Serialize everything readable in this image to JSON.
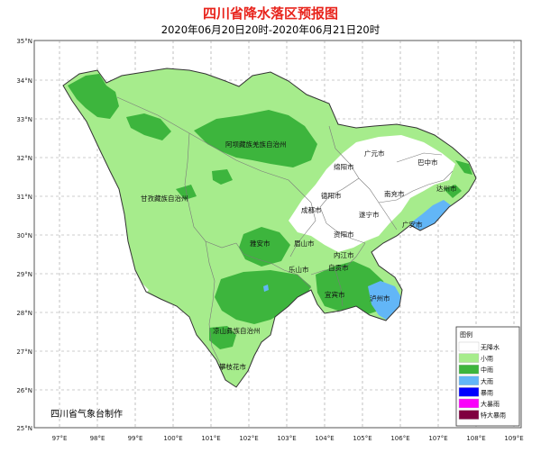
{
  "header": {
    "title": "四川省降水落区预报图",
    "subtitle": "2020年06月20日20时-2020年06月21日20时"
  },
  "axes": {
    "lat_labels": [
      "35°N",
      "34°N",
      "33°N",
      "32°N",
      "31°N",
      "30°N",
      "29°N",
      "28°N",
      "27°N",
      "26°N",
      "25°N"
    ],
    "lon_labels": [
      "97°E",
      "98°E",
      "99°E",
      "100°E",
      "101°E",
      "102°E",
      "103°E",
      "104°E",
      "105°E",
      "106°E",
      "107°E",
      "108°E",
      "109°E"
    ]
  },
  "regions": {
    "aba": "阿坝藏族羌族自治州",
    "ganzi": "甘孜藏族自治州",
    "liangshan": "凉山彝族自治州",
    "panzhihua": "攀枝花市",
    "guangyuan": "广元市",
    "bazhong": "巴中市",
    "mianyang": "绵阳市",
    "dazhou": "达州市",
    "deyang": "德阳市",
    "nanchong": "南充市",
    "chengdu": "成都市",
    "suining": "遂宁市",
    "guangan": "广安市",
    "ziyang": "资阳市",
    "yaan": "雅安市",
    "meishan": "眉山市",
    "neijiang": "内江市",
    "leshan": "乐山市",
    "zigong": "自贡市",
    "yibin": "宜宾市",
    "luzhou": "泸州市"
  },
  "credit": "四川省气象台制作",
  "legend": {
    "title": "图例",
    "items": [
      {
        "label": "无降水",
        "color": "#ffffff"
      },
      {
        "label": "小雨",
        "color": "#a6ec8c"
      },
      {
        "label": "中雨",
        "color": "#3db53d"
      },
      {
        "label": "大雨",
        "color": "#62b6f7"
      },
      {
        "label": "暴雨",
        "color": "#0000fe"
      },
      {
        "label": "大暴雨",
        "color": "#fa00fa"
      },
      {
        "label": "特大暴雨",
        "color": "#800040"
      }
    ]
  }
}
